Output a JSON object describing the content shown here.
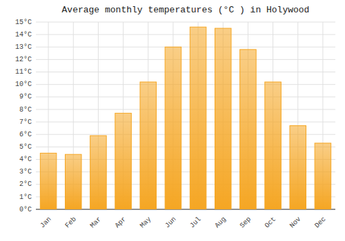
{
  "chart_data": {
    "type": "bar",
    "title": "Average monthly temperatures (°C ) in Holywood",
    "categories": [
      "Jan",
      "Feb",
      "Mar",
      "Apr",
      "May",
      "Jun",
      "Jul",
      "Aug",
      "Sep",
      "Oct",
      "Nov",
      "Dec"
    ],
    "values": [
      4.5,
      4.4,
      5.9,
      7.7,
      10.2,
      13.0,
      14.6,
      14.5,
      12.8,
      10.2,
      6.7,
      5.3
    ],
    "color": "#F5A623",
    "ylim": [
      0,
      15
    ],
    "yticks": [
      {
        "value": 0,
        "label": "0°C"
      },
      {
        "value": 1,
        "label": "1°C"
      },
      {
        "value": 2,
        "label": "2°C"
      },
      {
        "value": 3,
        "label": "3°C"
      },
      {
        "value": 4,
        "label": "4°C"
      },
      {
        "value": 5,
        "label": "5°C"
      },
      {
        "value": 6,
        "label": "6°C"
      },
      {
        "value": 7,
        "label": "7°C"
      },
      {
        "value": 8,
        "label": "8°C"
      },
      {
        "value": 9,
        "label": "9°C"
      },
      {
        "value": 10,
        "label": "10°C"
      },
      {
        "value": 11,
        "label": "11°C"
      },
      {
        "value": 12,
        "label": "12°C"
      },
      {
        "value": 13,
        "label": "13°C"
      },
      {
        "value": 14,
        "label": "14°C"
      },
      {
        "value": 15,
        "label": "15°C"
      }
    ],
    "grid": true
  }
}
